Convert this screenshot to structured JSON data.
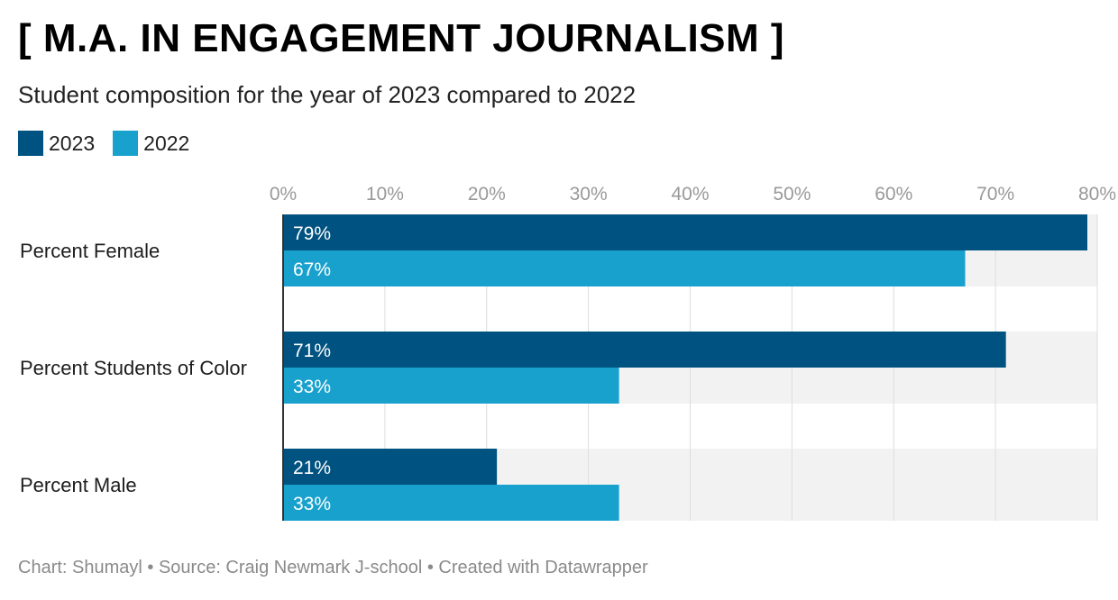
{
  "title": "[ M.A. IN ENGAGEMENT JOURNALISM ]",
  "subtitle": "Student composition for the year of 2023 compared to 2022",
  "footer": "Chart: Shumayl • Source: Craig Newmark J-school • Created with Datawrapper",
  "colors": {
    "series_2023": "#005281",
    "series_2022": "#18a1cd",
    "row_background": "#f2f2f2",
    "gridline": "#dddddd",
    "tick_text": "#999999"
  },
  "chart_data": {
    "type": "bar",
    "orientation": "horizontal",
    "categories": [
      "Percent Female",
      "Percent Students of Color",
      "Percent Male"
    ],
    "series": [
      {
        "name": "2023",
        "values": [
          79,
          71,
          21
        ],
        "labels": [
          "79%",
          "71%",
          "21%"
        ]
      },
      {
        "name": "2022",
        "values": [
          67,
          33,
          33
        ],
        "labels": [
          "67%",
          "33%",
          "33%"
        ]
      }
    ],
    "x_ticks": [
      "0%",
      "10%",
      "20%",
      "30%",
      "40%",
      "50%",
      "60%",
      "70%",
      "80%"
    ],
    "xlim": [
      0,
      80
    ],
    "grid": true,
    "legend_position": "top-left"
  }
}
